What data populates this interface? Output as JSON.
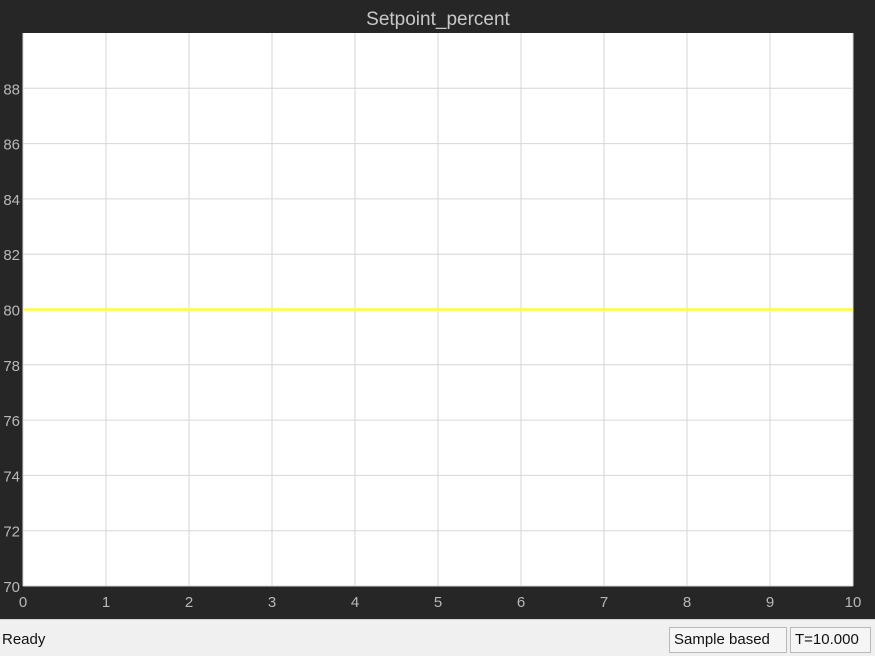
{
  "window": {
    "status_text": "Ready",
    "mode_label": "Sample based",
    "time_label": "T=10.000"
  },
  "colors": {
    "figure_background": "#262626",
    "axes_background": "#ffffff",
    "grid": "#d6d6d6",
    "tick_text": "#b8b8b8",
    "title_text": "#c8c8c8",
    "series_line": "#ffff33"
  },
  "chart_data": {
    "type": "line",
    "title": "Setpoint_percent",
    "xlabel": "",
    "ylabel": "",
    "xlim": [
      0,
      10
    ],
    "ylim": [
      70,
      90
    ],
    "x_ticks": [
      0,
      1,
      2,
      3,
      4,
      5,
      6,
      7,
      8,
      9,
      10
    ],
    "y_ticks": [
      70,
      72,
      74,
      76,
      78,
      80,
      82,
      84,
      86,
      88
    ],
    "grid": true,
    "legend": "none",
    "series": [
      {
        "x": [
          0,
          10
        ],
        "y": [
          80,
          80
        ],
        "color": "#ffff33"
      }
    ]
  }
}
